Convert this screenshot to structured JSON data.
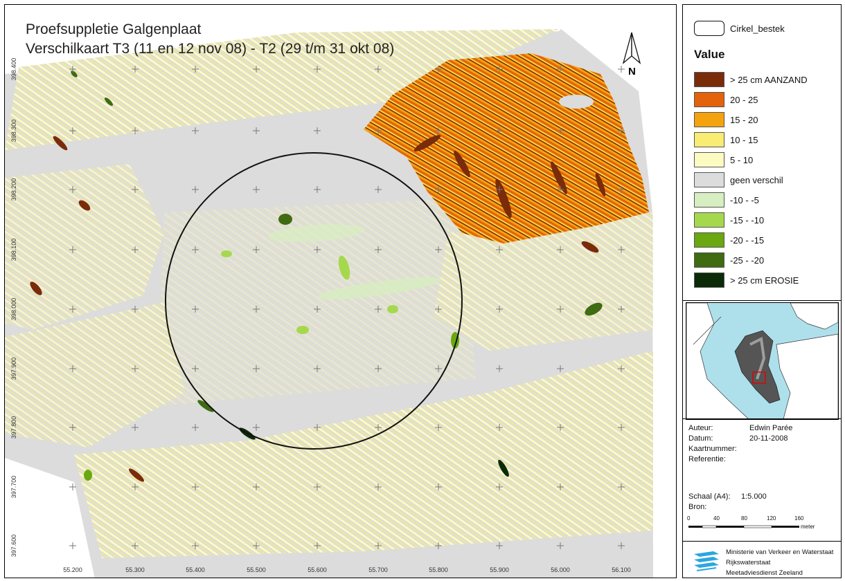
{
  "map": {
    "title_line1": "Proefsuppletie Galgenplaat",
    "title_line2": "Verschilkaart T3 (11 en 12 nov 08) - T2 (29 t/m 31 okt 08)",
    "north_label": "N",
    "x_ticks": [
      "55.200",
      "55.300",
      "55.400",
      "55.500",
      "55.600",
      "55.700",
      "55.800",
      "55.900",
      "56.000",
      "56.100"
    ],
    "y_ticks": [
      "398.400",
      "398.300",
      "398.200",
      "398.100",
      "398.000",
      "397.900",
      "397.800",
      "397.700",
      "397.600"
    ]
  },
  "legend": {
    "outline_label": "Cirkel_bestek",
    "value_heading": "Value",
    "classes": [
      {
        "label": "> 25 cm AANZAND",
        "color": "#7a2b0a"
      },
      {
        "label": "20 - 25",
        "color": "#e3620c"
      },
      {
        "label": "15 - 20",
        "color": "#f4a30e"
      },
      {
        "label": "10 - 15",
        "color": "#f8ec74"
      },
      {
        "label": "5 - 10",
        "color": "#fcfbc2"
      },
      {
        "label": "geen verschil",
        "color": "#dcdcdc"
      },
      {
        "label": "-10 - -5",
        "color": "#d7eec0"
      },
      {
        "label": "-15 - -10",
        "color": "#a6d84e"
      },
      {
        "label": "-20 - -15",
        "color": "#6aa711"
      },
      {
        "label": "-25 - -20",
        "color": "#3f6b12"
      },
      {
        "label": "> 25 cm EROSIE",
        "color": "#0b2a08"
      }
    ]
  },
  "meta": {
    "author_label": "Auteur:",
    "author": "Edwin Parée",
    "date_label": "Datum:",
    "date": "20-11-2008",
    "mapnum_label": "Kaartnummer:",
    "ref_label": "Referentie:",
    "scale_label": "Schaal (A4):",
    "scale": "1:5.000",
    "source_label": "Bron:",
    "scalebar_ticks": [
      "0",
      "40",
      "80",
      "120",
      "160"
    ],
    "scalebar_unit": "meter"
  },
  "org": {
    "line1": "Ministerie van Verkeer en Waterstaat",
    "line2": "Rijkswaterstaat",
    "line3": "Meetadviesdienst Zeeland"
  }
}
